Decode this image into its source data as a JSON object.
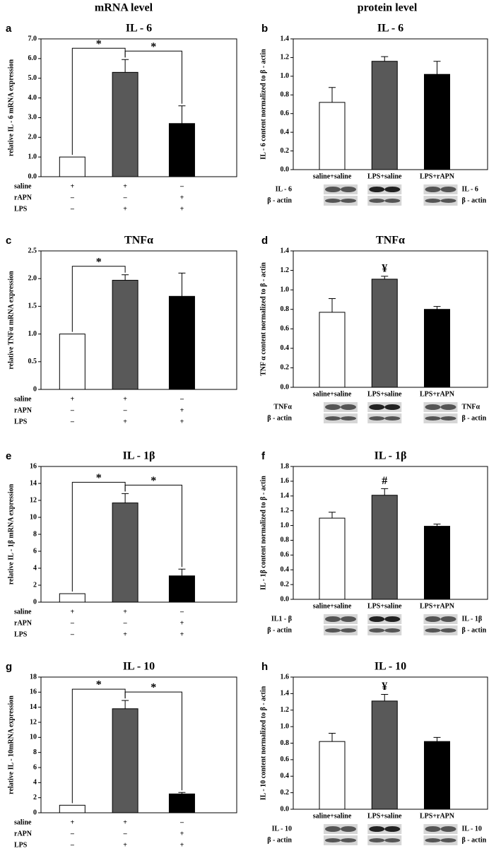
{
  "headers": [
    "mRNA level",
    "protein level"
  ],
  "chart_data": [
    {
      "type": "bar",
      "panel": "a",
      "title": "IL - 6",
      "ylabel": "relative IL - 6 mRNA expression",
      "categories": [
        null,
        null,
        null
      ],
      "values": [
        1.0,
        5.3,
        2.7
      ],
      "errors": [
        null,
        0.65,
        0.9
      ],
      "colors": [
        "#ffffff",
        "#595959",
        "#000000"
      ],
      "ylim": [
        0,
        7
      ],
      "yticks": [
        {
          "value": 0,
          "label": "0.0"
        },
        {
          "value": 1,
          "label": "1.0"
        },
        {
          "value": 2,
          "label": "2.0"
        },
        {
          "value": 3,
          "label": "3.0"
        },
        {
          "value": 4,
          "label": "4.0"
        },
        {
          "value": 5,
          "label": "5.0"
        },
        {
          "value": 6,
          "label": "6.0"
        },
        {
          "value": 7,
          "label": "7.0"
        }
      ],
      "treatments": [
        {
          "name": "saline",
          "signs": [
            "+",
            "+",
            "–"
          ]
        },
        {
          "name": "rAPN",
          "signs": [
            "–",
            "–",
            "+"
          ]
        },
        {
          "name": "LPS",
          "signs": [
            "–",
            "+",
            "+"
          ]
        }
      ],
      "brackets": [
        {
          "bars": [
            0,
            1
          ],
          "label": "*"
        },
        {
          "bars": [
            1,
            2
          ],
          "label": "*"
        }
      ]
    },
    {
      "type": "bar",
      "panel": "b",
      "title": "IL - 6",
      "ylabel": "IL - 6  content normalized to β - actin",
      "categories": [
        "saline+saline",
        "LPS+saline",
        "LPS+rAPN"
      ],
      "values": [
        0.72,
        1.16,
        1.02
      ],
      "errors": [
        0.16,
        0.05,
        0.14
      ],
      "colors": [
        "#ffffff",
        "#595959",
        "#000000"
      ],
      "ylim": [
        0,
        1.4
      ],
      "yticks": [
        {
          "value": 0,
          "label": "0.0"
        },
        0.2,
        0.4,
        0.6,
        0.8,
        {
          "value": 1,
          "label": "1.0"
        },
        1.2,
        1.4
      ],
      "blot_labels_left": [
        "IL - 6",
        "β - actin"
      ],
      "blot_labels_right": [
        "IL - 6",
        "β - actin"
      ]
    },
    {
      "type": "bar",
      "panel": "c",
      "title": "TNFα",
      "ylabel": "relative TNFα mRNA expression",
      "categories": [
        null,
        null,
        null
      ],
      "values": [
        1.0,
        1.97,
        1.68
      ],
      "errors": [
        null,
        0.1,
        0.42
      ],
      "colors": [
        "#ffffff",
        "#595959",
        "#000000"
      ],
      "ylim": [
        0,
        2.5
      ],
      "yticks": [
        0,
        0.5,
        {
          "value": 1,
          "label": "1.0"
        },
        1.5,
        {
          "value": 2,
          "label": "2.0"
        },
        2.5
      ],
      "treatments": [
        {
          "name": "saline",
          "signs": [
            "+",
            "+",
            "–"
          ]
        },
        {
          "name": "rAPN",
          "signs": [
            "–",
            "–",
            "+"
          ]
        },
        {
          "name": "LPS",
          "signs": [
            "–",
            "+",
            "+"
          ]
        }
      ],
      "brackets": [
        {
          "bars": [
            0,
            1
          ],
          "label": "*"
        }
      ]
    },
    {
      "type": "bar",
      "panel": "d",
      "title": "TNFα",
      "ylabel": "TNF α content normalized to β - actin",
      "categories": [
        "saline+saline",
        "LPS+saline",
        "LPS+rAPN"
      ],
      "values": [
        0.77,
        1.11,
        0.8
      ],
      "errors": [
        0.14,
        0.03,
        0.03
      ],
      "colors": [
        "#ffffff",
        "#595959",
        "#000000"
      ],
      "bar_labels": [
        null,
        "¥",
        null
      ],
      "ylim": [
        0,
        1.4
      ],
      "yticks": [
        {
          "value": 0,
          "label": "0.0"
        },
        0.2,
        0.4,
        0.6,
        0.8,
        {
          "value": 1,
          "label": "1.0"
        },
        1.2,
        1.4
      ],
      "blot_labels_left": [
        "TNFα",
        "β - actin"
      ],
      "blot_labels_right": [
        "TNFα",
        "β - actin"
      ]
    },
    {
      "type": "bar",
      "panel": "e",
      "title": "IL - 1β",
      "ylabel": "relative IL - 1β  mRNA expression",
      "categories": [
        null,
        null,
        null
      ],
      "values": [
        1.0,
        11.7,
        3.1
      ],
      "errors": [
        null,
        1.1,
        0.8
      ],
      "colors": [
        "#ffffff",
        "#595959",
        "#000000"
      ],
      "ylim": [
        0,
        16
      ],
      "yticks": [
        0,
        2,
        4,
        6,
        8,
        10,
        12,
        14,
        16
      ],
      "treatments": [
        {
          "name": "saline",
          "signs": [
            "+",
            "+",
            "–"
          ]
        },
        {
          "name": "rAPN",
          "signs": [
            "–",
            "–",
            "+"
          ]
        },
        {
          "name": "LPS",
          "signs": [
            "–",
            "+",
            "+"
          ]
        }
      ],
      "brackets": [
        {
          "bars": [
            0,
            1
          ],
          "label": "*"
        },
        {
          "bars": [
            1,
            2
          ],
          "label": "*"
        }
      ]
    },
    {
      "type": "bar",
      "panel": "f",
      "title": "IL - 1β",
      "ylabel": "IL - 1β content normalized to β - actin",
      "categories": [
        "saline+saline",
        "LPS+saline",
        "LPS+rAPN"
      ],
      "values": [
        1.1,
        1.41,
        0.99
      ],
      "errors": [
        0.08,
        0.09,
        0.03
      ],
      "colors": [
        "#ffffff",
        "#595959",
        "#000000"
      ],
      "bar_labels": [
        null,
        "#",
        null
      ],
      "ylim": [
        0,
        1.8
      ],
      "yticks": [
        {
          "value": 0,
          "label": "0.0"
        },
        0.2,
        0.4,
        0.6,
        0.8,
        {
          "value": 1,
          "label": "1.0"
        },
        1.2,
        1.4,
        1.6,
        1.8
      ],
      "blot_labels_left": [
        "IL1 - β",
        "β - actin"
      ],
      "blot_labels_right": [
        "IL - 1β",
        "β - actin"
      ]
    },
    {
      "type": "bar",
      "panel": "g",
      "title": "IL - 10",
      "ylabel": "relative IL - 10mRNA expression",
      "categories": [
        null,
        null,
        null
      ],
      "values": [
        1.0,
        13.8,
        2.5
      ],
      "errors": [
        null,
        1.1,
        0.2
      ],
      "colors": [
        "#ffffff",
        "#595959",
        "#000000"
      ],
      "ylim": [
        0,
        18
      ],
      "yticks": [
        0,
        2,
        4,
        6,
        8,
        10,
        12,
        14,
        16,
        18
      ],
      "treatments": [
        {
          "name": "saline",
          "signs": [
            "+",
            "+",
            "–"
          ]
        },
        {
          "name": "rAPN",
          "signs": [
            "–",
            "–",
            "+"
          ]
        },
        {
          "name": "LPS",
          "signs": [
            "–",
            "+",
            "+"
          ]
        }
      ],
      "brackets": [
        {
          "bars": [
            0,
            1
          ],
          "label": "*"
        },
        {
          "bars": [
            1,
            2
          ],
          "label": "*"
        }
      ]
    },
    {
      "type": "bar",
      "panel": "h",
      "title": "IL - 10",
      "ylabel": "IL - 10 content normalized to β - actin",
      "categories": [
        "saline+saline",
        "LPS+saline",
        "LPS+rAPN"
      ],
      "values": [
        0.82,
        1.31,
        0.82
      ],
      "errors": [
        0.1,
        0.08,
        0.05
      ],
      "colors": [
        "#ffffff",
        "#595959",
        "#000000"
      ],
      "bar_labels": [
        null,
        "¥",
        null
      ],
      "ylim": [
        0,
        1.6
      ],
      "yticks": [
        {
          "value": 0,
          "label": "0.0"
        },
        0.2,
        0.4,
        0.6,
        0.8,
        {
          "value": 1,
          "label": "1.0"
        },
        1.2,
        1.4,
        1.6
      ],
      "blot_labels_left": [
        "IL - 10",
        "β - actin"
      ],
      "blot_labels_right": [
        "IL - 10",
        "β - actin"
      ]
    }
  ]
}
